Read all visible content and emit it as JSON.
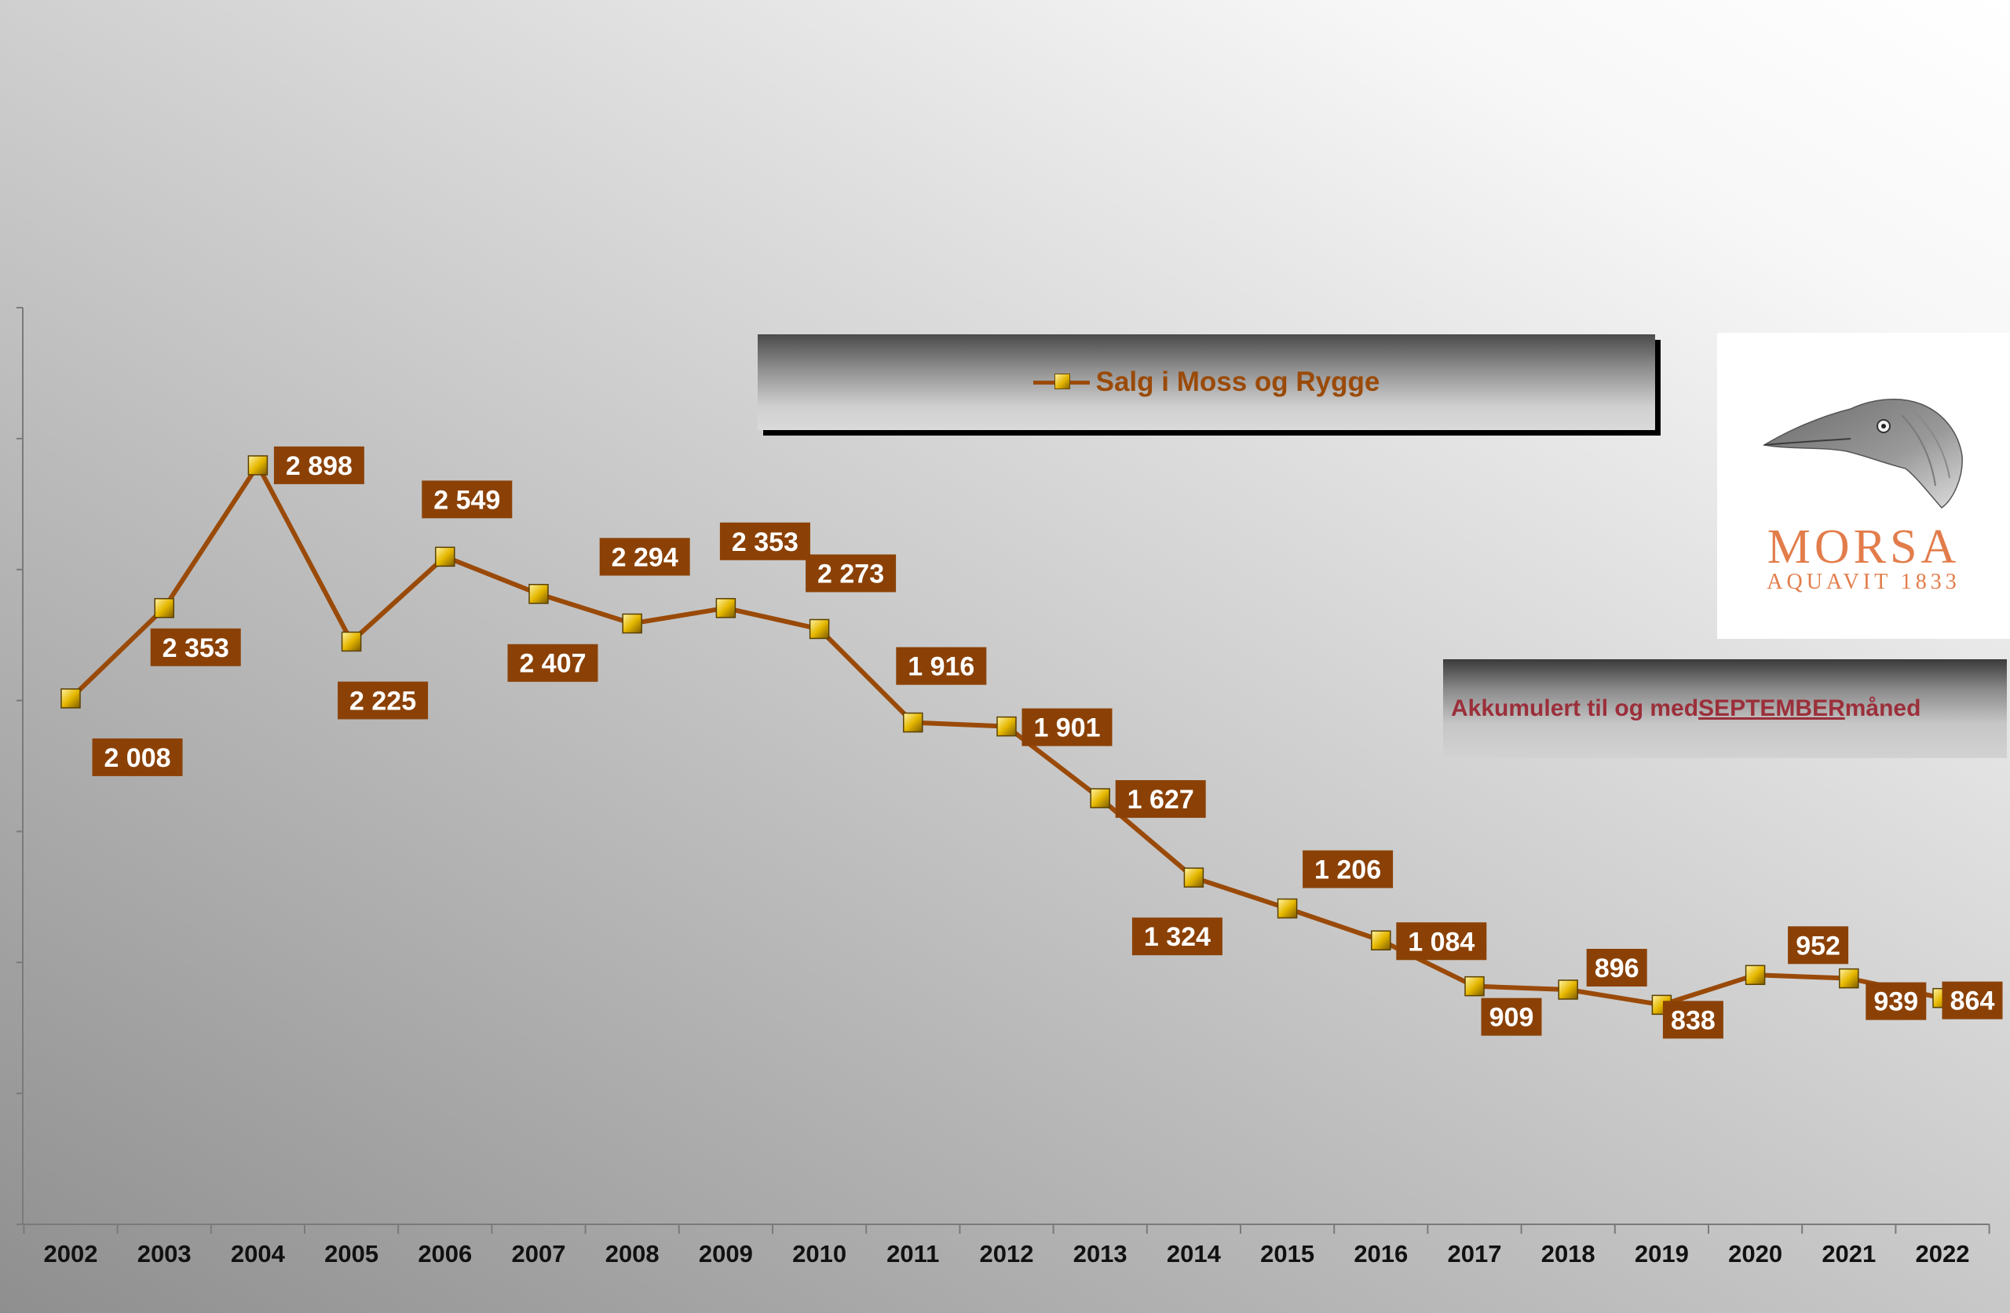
{
  "chart_data": {
    "type": "line",
    "categories": [
      "2002",
      "2003",
      "2004",
      "2005",
      "2006",
      "2007",
      "2008",
      "2009",
      "2010",
      "2011",
      "2012",
      "2013",
      "2014",
      "2015",
      "2016",
      "2017",
      "2018",
      "2019",
      "2020",
      "2021",
      "2022"
    ],
    "series": [
      {
        "name": "Salg i Moss og Rygge",
        "values": [
          2008,
          2353,
          2898,
          2225,
          2549,
          2407,
          2294,
          2353,
          2273,
          1916,
          1901,
          1627,
          1324,
          1206,
          1084,
          909,
          896,
          838,
          952,
          939,
          864
        ],
        "labels": [
          "2 008",
          "2 353",
          "2 898",
          "2 225",
          "2 549",
          "2 407",
          "2 294",
          "2 353",
          "2 273",
          "1 916",
          "1 901",
          "1 627",
          "1 324",
          "1 206",
          "1 084",
          "909",
          "896",
          "838",
          "952",
          "939",
          "864"
        ],
        "color": "#9a4a08"
      }
    ],
    "ylim": [
      0,
      3500
    ],
    "y_ticks_labeled": false,
    "grid": false,
    "legend_placement": "top-center",
    "label_color": "#8b4106",
    "label_text_color": "#ffffff",
    "marker_color": "#e8b800"
  },
  "legend": {
    "label": "Salg i Moss og Rygge"
  },
  "logo": {
    "brand": "MORSA",
    "subtitle": "AQUAVIT 1833"
  },
  "note": {
    "prefix": "Akkumulert til og med ",
    "month": "SEPTEMBER ",
    "suffix": "måned"
  }
}
